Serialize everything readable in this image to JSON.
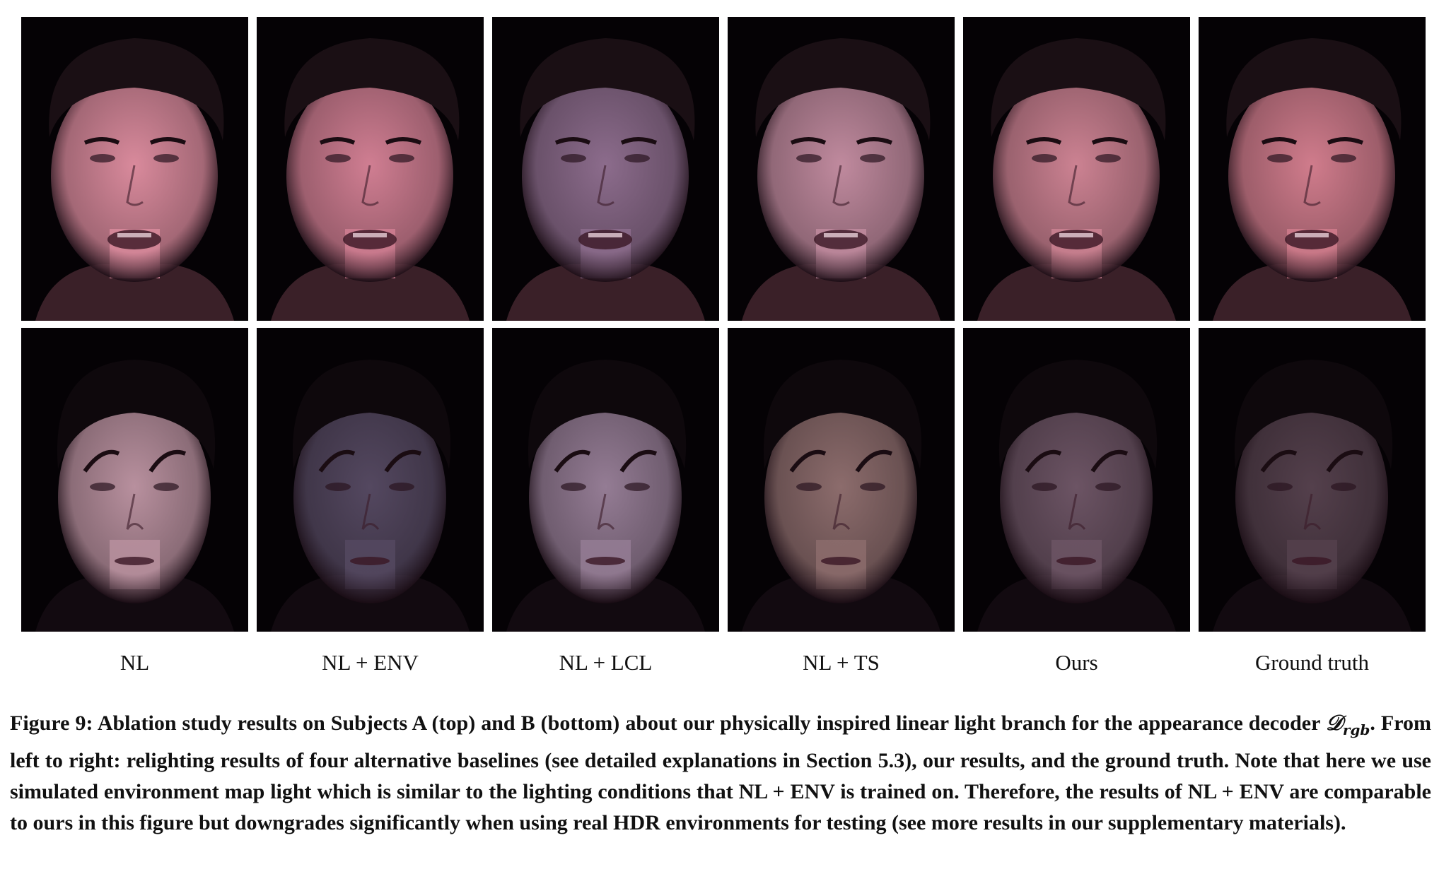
{
  "columns": [
    {
      "label": "NL",
      "tone_a": "#d98a9c",
      "tone_b": "#b8909e"
    },
    {
      "label": "NL + ENV",
      "tone_a": "#d07e92",
      "tone_b": "#544860"
    },
    {
      "label": "NL + LCL",
      "tone_a": "#8c6c8c",
      "tone_b": "#947c94"
    },
    {
      "label": "NL + TS",
      "tone_a": "#c08a9e",
      "tone_b": "#8c6c6c"
    },
    {
      "label": "Ours",
      "tone_a": "#cc8292",
      "tone_b": "#6c5464"
    },
    {
      "label": "Ground truth",
      "tone_a": "#d07c8c",
      "tone_b": "#54404c"
    }
  ],
  "caption": {
    "prefix": "Figure 9: Ablation study results on Subjects A (top) and B (bottom) about our physically inspired linear light branch for the appearance decoder ",
    "math": "𝒟",
    "math_sub": "rgb",
    "suffix": ". From left to right: relighting results of four alternative baselines (see detailed explanations in Section 5.3), our results, and the ground truth. Note that here we use simulated environment map light which is similar to the lighting conditions that NL + ENV is trained on. Therefore, the results of NL + ENV are comparable to ours in this figure but downgrades significantly when using real HDR environments for testing (see more results in our supplementary materials)."
  }
}
